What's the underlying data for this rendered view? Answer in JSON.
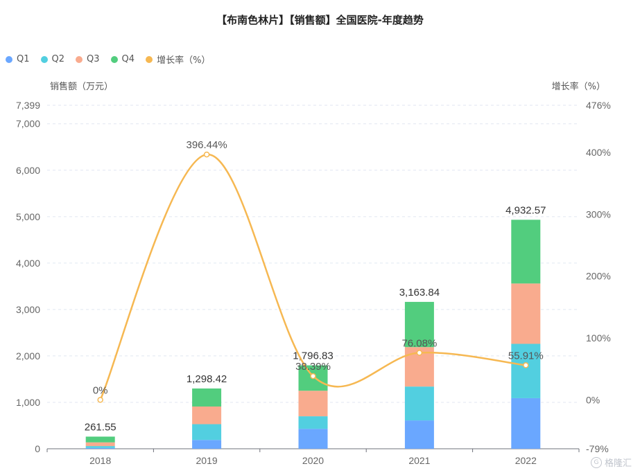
{
  "title": "【布南色林片】【销售额】全国医院-年度趋势",
  "legend": [
    {
      "label": "Q1",
      "color": "#6aa7ff"
    },
    {
      "label": "Q2",
      "color": "#52cfe0"
    },
    {
      "label": "Q3",
      "color": "#f9ab8e"
    },
    {
      "label": "Q4",
      "color": "#52cd7e"
    },
    {
      "label": "增长率（%）",
      "color": "#f6b852"
    }
  ],
  "left_axis_name": "销售额（万元）",
  "right_axis_name": "增长率（%）",
  "watermark": "格隆汇",
  "chart_data": {
    "type": "bar",
    "categories": [
      "2018",
      "2019",
      "2020",
      "2021",
      "2022"
    ],
    "series": [
      {
        "name": "Q1",
        "color": "#6aa7ff",
        "values": [
          18,
          190,
          430,
          610,
          1090
        ]
      },
      {
        "name": "Q2",
        "color": "#52cfe0",
        "values": [
          40,
          340,
          270,
          730,
          1170
        ]
      },
      {
        "name": "Q3",
        "color": "#f9ab8e",
        "values": [
          80,
          380,
          550,
          850,
          1300
        ]
      },
      {
        "name": "Q4",
        "color": "#52cd7e",
        "values": [
          123.55,
          388.42,
          546.83,
          973.84,
          1372.57
        ]
      }
    ],
    "totals": [
      "261.55",
      "1,298.42",
      "1,796.83",
      "3,163.84",
      "4,932.57"
    ],
    "growth": {
      "name": "增长率（%）",
      "color": "#f6b852",
      "values": [
        0,
        396.44,
        38.39,
        76.08,
        55.91
      ],
      "labels": [
        "0%",
        "396.44%",
        "38.39%",
        "76.08%",
        "55.91%"
      ]
    },
    "y_left": {
      "min": 0,
      "max": 7399,
      "ticks": [
        0,
        1000,
        2000,
        3000,
        4000,
        5000,
        6000,
        7000,
        7399
      ],
      "tick_labels": [
        "0",
        "1,000",
        "2,000",
        "3,000",
        "4,000",
        "5,000",
        "6,000",
        "7,000",
        "7,399"
      ]
    },
    "y_right": {
      "min": -79,
      "max": 476,
      "ticks": [
        -79,
        0,
        100,
        200,
        300,
        400,
        476
      ],
      "tick_labels": [
        "-79%",
        "0%",
        "100%",
        "200%",
        "300%",
        "400%",
        "476%"
      ]
    },
    "grid": true,
    "legend_position": "top-left"
  }
}
